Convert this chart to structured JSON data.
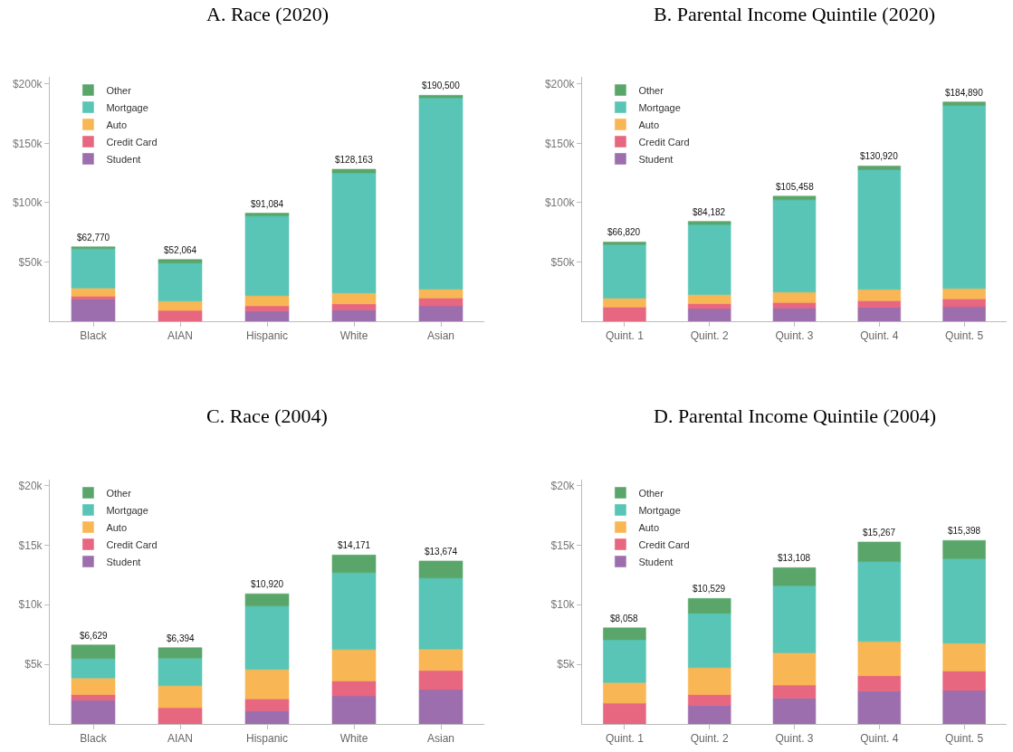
{
  "chart_data": [
    {
      "type": "bar",
      "title": "A. Race (2020)",
      "stacked": true,
      "legend": "top left",
      "categories": [
        "Black",
        "AIAN",
        "Hispanic",
        "White",
        "Asian"
      ],
      "series": [
        {
          "name": "Student",
          "color": "#9a6aab",
          "values": [
            18600,
            null,
            8600,
            9600,
            12900
          ]
        },
        {
          "name": "Credit Card",
          "color": "#e8637c",
          "values": [
            2500,
            9100,
            4300,
            5100,
            6700
          ]
        },
        {
          "name": "Auto",
          "color": "#f8b54f",
          "values": [
            6900,
            7900,
            8700,
            9200,
            7400
          ]
        },
        {
          "name": "Mortgage",
          "color": "#53c4b4",
          "values": [
            33200,
            32000,
            67200,
            101200,
            161500
          ]
        },
        {
          "name": "Other",
          "color": "#55a466",
          "values": [
            1570,
            3064,
            2284,
            3063,
            2000
          ]
        }
      ],
      "totals": [
        "$62,770",
        "$52,064",
        "$91,084",
        "$128,163",
        "$190,500"
      ],
      "ylim": [
        0,
        206000
      ],
      "yticks": [
        {
          "value": 50000,
          "label": "$50k"
        },
        {
          "value": 100000,
          "label": "$100k"
        },
        {
          "value": 150000,
          "label": "$150k"
        },
        {
          "value": 200000,
          "label": "$200k"
        }
      ]
    },
    {
      "type": "bar",
      "title": "B. Parental Income Quintile (2020)",
      "stacked": true,
      "legend": "top left",
      "categories": [
        "Quint. 1",
        "Quint. 2",
        "Quint. 3",
        "Quint. 4",
        "Quint. 5"
      ],
      "series": [
        {
          "name": "Student",
          "color": "#9a6aab",
          "values": [
            null,
            10700,
            11200,
            11700,
            12200
          ]
        },
        {
          "name": "Credit Card",
          "color": "#e8637c",
          "values": [
            12000,
            4100,
            4600,
            5600,
            6600
          ]
        },
        {
          "name": "Auto",
          "color": "#f8b54f",
          "values": [
            7500,
            7800,
            8800,
            9500,
            8800
          ]
        },
        {
          "name": "Mortgage",
          "color": "#53c4b4",
          "values": [
            45100,
            59100,
            77800,
            101000,
            154300
          ]
        },
        {
          "name": "Other",
          "color": "#55a466",
          "values": [
            2220,
            2482,
            3058,
            3120,
            2990
          ]
        }
      ],
      "totals": [
        "$66,820",
        "$84,182",
        "$105,458",
        "$130,920",
        "$184,890"
      ],
      "ylim": [
        0,
        206000
      ],
      "yticks": [
        {
          "value": 50000,
          "label": "$50k"
        },
        {
          "value": 100000,
          "label": "$100k"
        },
        {
          "value": 150000,
          "label": "$150k"
        },
        {
          "value": 200000,
          "label": "$200k"
        }
      ]
    },
    {
      "type": "bar",
      "title": "C. Race (2004)",
      "stacked": true,
      "legend": "top left",
      "categories": [
        "Black",
        "AIAN",
        "Hispanic",
        "White",
        "Asian"
      ],
      "series": [
        {
          "name": "Student",
          "color": "#9a6aab",
          "values": [
            2000,
            null,
            1110,
            2350,
            2880
          ]
        },
        {
          "name": "Credit Card",
          "color": "#e8637c",
          "values": [
            470,
            1360,
            990,
            1260,
            1610
          ]
        },
        {
          "name": "Auto",
          "color": "#f8b54f",
          "values": [
            1390,
            1850,
            2470,
            2630,
            1800
          ]
        },
        {
          "name": "Mortgage",
          "color": "#53c4b4",
          "values": [
            1620,
            2320,
            5330,
            6460,
            5960
          ]
        },
        {
          "name": "Other",
          "color": "#55a466",
          "values": [
            1149,
            864,
            1020,
            1471,
            1424
          ]
        }
      ],
      "totals": [
        "$6,629",
        "$6,394",
        "$10,920",
        "$14,171",
        "$13,674"
      ],
      "ylim": [
        0,
        20500
      ],
      "yticks": [
        {
          "value": 5000,
          "label": "$5k"
        },
        {
          "value": 10000,
          "label": "$10k"
        },
        {
          "value": 15000,
          "label": "$15k"
        },
        {
          "value": 20000,
          "label": "$20k"
        }
      ]
    },
    {
      "type": "bar",
      "title": "D. Parental Income Quintile (2004)",
      "stacked": true,
      "legend": "top left",
      "categories": [
        "Quint. 1",
        "Quint. 2",
        "Quint. 3",
        "Quint. 4",
        "Quint. 5"
      ],
      "series": [
        {
          "name": "Student",
          "color": "#9a6aab",
          "values": [
            null,
            1580,
            2160,
            2760,
            2810
          ]
        },
        {
          "name": "Credit Card",
          "color": "#e8637c",
          "values": [
            1740,
            880,
            1100,
            1290,
            1640
          ]
        },
        {
          "name": "Auto",
          "color": "#f8b54f",
          "values": [
            1740,
            2270,
            2710,
            2870,
            2320
          ]
        },
        {
          "name": "Mortgage",
          "color": "#53c4b4",
          "values": [
            3590,
            4560,
            5630,
            6700,
            7100
          ]
        },
        {
          "name": "Other",
          "color": "#55a466",
          "values": [
            988,
            1239,
            1508,
            1647,
            1528
          ]
        }
      ],
      "totals": [
        "$8,058",
        "$10,529",
        "$13,108",
        "$15,267",
        "$15,398"
      ],
      "ylim": [
        0,
        20500
      ],
      "yticks": [
        {
          "value": 5000,
          "label": "$5k"
        },
        {
          "value": 10000,
          "label": "$10k"
        },
        {
          "value": 15000,
          "label": "$15k"
        },
        {
          "value": 20000,
          "label": "$20k"
        }
      ]
    }
  ]
}
